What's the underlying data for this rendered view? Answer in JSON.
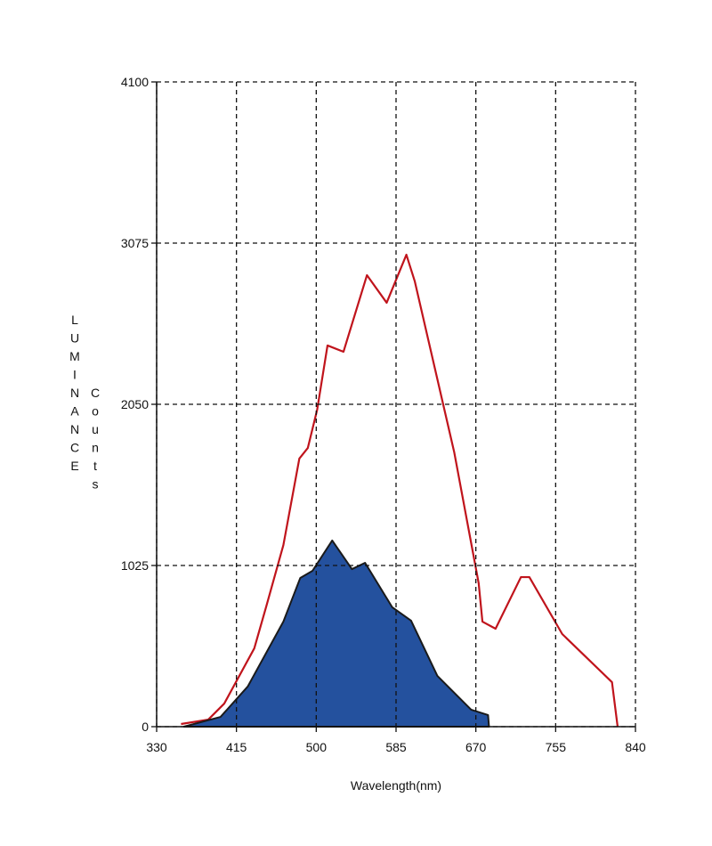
{
  "chart_data": {
    "type": "line",
    "x_label": "Wavelength(nm)",
    "y_label": "LUMINANCE",
    "y_label_2": "Counts",
    "xlim": [
      330,
      840
    ],
    "xticks": [
      330,
      415,
      500,
      585,
      670,
      755,
      840
    ],
    "ylim": [
      0,
      4100
    ],
    "yticks": [
      0,
      1025,
      2050,
      3075,
      4100
    ],
    "grid": true,
    "series": [
      {
        "color": "#c0141c",
        "fill": false,
        "x": [
          356,
          385,
          402,
          434,
          447,
          465,
          482,
          491,
          501,
          512,
          529,
          554,
          575,
          596,
          605,
          647,
          673,
          677,
          691,
          718,
          727,
          762,
          815,
          821
        ],
        "values": [
          17,
          45,
          147,
          498,
          770,
          1155,
          1705,
          1772,
          2016,
          2424,
          2384,
          2871,
          2696,
          3001,
          2831,
          1744,
          912,
          668,
          623,
          951,
          951,
          589,
          283,
          0
        ]
      },
      {
        "color": "#24519e",
        "fill": true,
        "x": [
          359,
          398,
          427,
          465,
          483,
          496,
          517,
          538,
          552,
          581,
          601,
          629,
          665,
          683,
          684
        ],
        "values": [
          0,
          62,
          255,
          668,
          946,
          991,
          1184,
          1002,
          1042,
          759,
          674,
          323,
          108,
          74,
          0
        ]
      }
    ]
  }
}
